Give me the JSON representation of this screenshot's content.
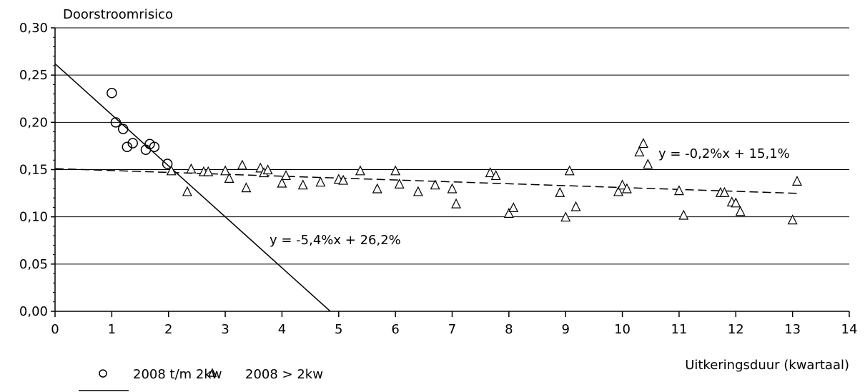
{
  "chart_data": {
    "type": "scatter",
    "ylabel": "Doorstroomrisico",
    "xlabel": "Uitkeringsduur (kwartaal)",
    "xlim": [
      0,
      14
    ],
    "ylim": [
      0,
      0.3
    ],
    "x_ticks": [
      0,
      1,
      2,
      3,
      4,
      5,
      6,
      7,
      8,
      9,
      10,
      11,
      12,
      13,
      14
    ],
    "x_tick_labels": [
      "0",
      "1",
      "2",
      "3",
      "4",
      "5",
      "6",
      "7",
      "8",
      "9",
      "10",
      "11",
      "12",
      "13",
      "14"
    ],
    "y_ticks": [
      0,
      0.05,
      0.1,
      0.15,
      0.2,
      0.25,
      0.3
    ],
    "y_tick_labels": [
      "0,00",
      "0,05",
      "0,10",
      "0,15",
      "0,20",
      "0,25",
      "0,30"
    ],
    "grid": "horizontal",
    "legend_position": "bottom",
    "series": [
      {
        "name": "2008 t/m 2kw",
        "marker": "circle",
        "points": [
          [
            1.0,
            0.231
          ],
          [
            1.07,
            0.2
          ],
          [
            1.2,
            0.193
          ],
          [
            1.27,
            0.174
          ],
          [
            1.37,
            0.178
          ],
          [
            1.6,
            0.171
          ],
          [
            1.67,
            0.177
          ],
          [
            1.75,
            0.174
          ],
          [
            1.98,
            0.156
          ]
        ]
      },
      {
        "name": "2008 > 2kw",
        "marker": "triangle",
        "points": [
          [
            2.05,
            0.149
          ],
          [
            2.33,
            0.127
          ],
          [
            2.4,
            0.151
          ],
          [
            2.62,
            0.148
          ],
          [
            2.7,
            0.148
          ],
          [
            3.0,
            0.149
          ],
          [
            3.07,
            0.141
          ],
          [
            3.3,
            0.155
          ],
          [
            3.37,
            0.131
          ],
          [
            3.62,
            0.152
          ],
          [
            3.68,
            0.147
          ],
          [
            3.75,
            0.15
          ],
          [
            4.0,
            0.136
          ],
          [
            4.07,
            0.144
          ],
          [
            4.37,
            0.134
          ],
          [
            4.68,
            0.137
          ],
          [
            5.0,
            0.14
          ],
          [
            5.08,
            0.139
          ],
          [
            5.38,
            0.149
          ],
          [
            5.68,
            0.13
          ],
          [
            6.0,
            0.149
          ],
          [
            6.07,
            0.135
          ],
          [
            6.4,
            0.127
          ],
          [
            6.7,
            0.134
          ],
          [
            7.0,
            0.13
          ],
          [
            7.07,
            0.114
          ],
          [
            7.67,
            0.147
          ],
          [
            7.77,
            0.144
          ],
          [
            8.0,
            0.104
          ],
          [
            8.08,
            0.11
          ],
          [
            8.9,
            0.126
          ],
          [
            9.0,
            0.1
          ],
          [
            9.07,
            0.149
          ],
          [
            9.18,
            0.111
          ],
          [
            9.93,
            0.127
          ],
          [
            10.0,
            0.134
          ],
          [
            10.08,
            0.13
          ],
          [
            10.3,
            0.169
          ],
          [
            10.37,
            0.178
          ],
          [
            10.45,
            0.156
          ],
          [
            11.0,
            0.128
          ],
          [
            11.08,
            0.102
          ],
          [
            11.73,
            0.126
          ],
          [
            11.8,
            0.126
          ],
          [
            11.93,
            0.116
          ],
          [
            12.0,
            0.115
          ],
          [
            12.08,
            0.106
          ],
          [
            13.0,
            0.097
          ],
          [
            13.08,
            0.138
          ]
        ]
      }
    ],
    "trendlines": [
      {
        "style": "solid",
        "slope": -0.054,
        "intercept": 0.262,
        "x_range": [
          0,
          4.85
        ],
        "equation": "y = -5,4%x + 26,2%"
      },
      {
        "style": "dashed",
        "slope": -0.002,
        "intercept": 0.151,
        "x_range": [
          0,
          13.08
        ],
        "equation": "y = -0,2%x + 15,1%"
      }
    ]
  }
}
